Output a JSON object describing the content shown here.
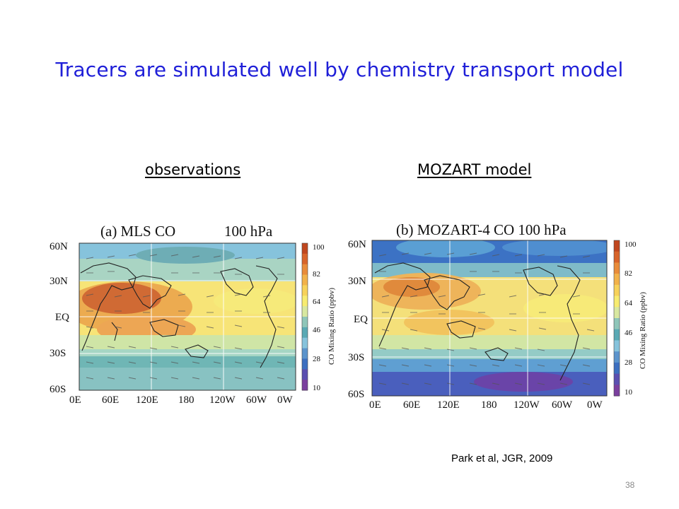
{
  "slide": {
    "title": "Tracers are simulated well by chemistry transport model",
    "left_heading": "observations",
    "right_heading": "MOZART model",
    "citation": "Park et al, JGR, 2009",
    "page_number": "38"
  },
  "panels": [
    {
      "id": "a",
      "title": "(a) MLS CO",
      "level": "100 hPa",
      "lat_labels": [
        "60N",
        "30N",
        "EQ",
        "30S",
        "60S"
      ],
      "lon_labels": [
        "0E",
        "60E",
        "120E",
        "180",
        "120W",
        "60W",
        "0W"
      ],
      "colorbar_label": "CO Mixing Ratio (ppbv)",
      "colorbar_ticks": [
        "100",
        "82",
        "64",
        "46",
        "28",
        "10"
      ]
    },
    {
      "id": "b",
      "title": "(b) MOZART-4 CO 100 hPa",
      "level": "",
      "lat_labels": [
        "60N",
        "30N",
        "EQ",
        "30S",
        "60S"
      ],
      "lon_labels": [
        "0E",
        "60E",
        "120E",
        "180",
        "120W",
        "60W",
        "0W"
      ],
      "colorbar_label": "CO Mixing Ratio (ppbv)",
      "colorbar_ticks": [
        "100",
        "82",
        "64",
        "46",
        "28",
        "10"
      ]
    }
  ],
  "colors": {
    "title": "#1f1fd8",
    "colorbar": [
      "#c0471f",
      "#d8642a",
      "#e98c3a",
      "#f2b24a",
      "#f7d25a",
      "#f7ec70",
      "#d8e8a0",
      "#8fc6b9",
      "#5aa9b4",
      "#86c3dc",
      "#5b94cc",
      "#3c6fc0",
      "#5a4fb0",
      "#7a3f9e"
    ]
  }
}
